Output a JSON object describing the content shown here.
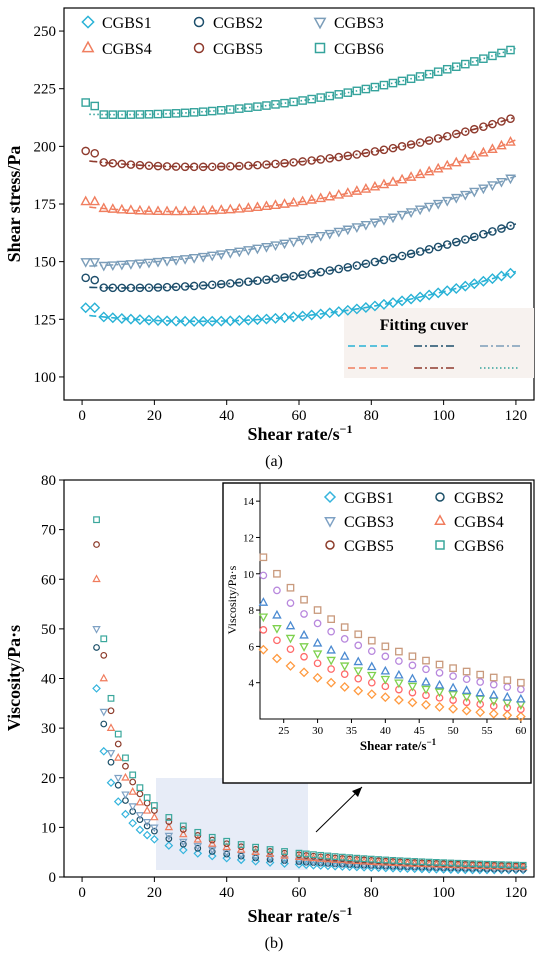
{
  "chart_data": [
    {
      "type": "scatter",
      "panel_label": "(a)",
      "xlabel": "Shear rate/s",
      "xlabel_sup": "−1",
      "ylabel": "Shear stress/Pa",
      "xlim": [
        -5,
        125
      ],
      "ylim": [
        90,
        260
      ],
      "xticks": [
        "0",
        "20",
        "40",
        "60",
        "80",
        "100",
        "120"
      ],
      "yticks": [
        "100",
        "125",
        "150",
        "175",
        "200",
        "225",
        "250"
      ],
      "legend_placement": "top",
      "fit_legend_title": "Fitting cuver",
      "series": [
        {
          "name": "CGBS1",
          "marker": "diamond",
          "color": "#29b2d6",
          "fit": "dash",
          "params": [
            127,
            -0.18,
            0.0028
          ]
        },
        {
          "name": "CGBS2",
          "marker": "circle",
          "color": "#1d4e6b",
          "fit": "dashdot",
          "params": [
            139,
            -0.06,
            0.0024
          ]
        },
        {
          "name": "CGBS3",
          "marker": "tri-down",
          "color": "#7b9db9",
          "fit": "dashdot",
          "params": [
            148,
            0.05,
            0.0023
          ]
        },
        {
          "name": "CGBS4",
          "marker": "tri-up",
          "color": "#f07e5f",
          "fit": "dash",
          "params": [
            174,
            -0.18,
            0.0035
          ]
        },
        {
          "name": "CGBS5",
          "marker": "circle",
          "color": "#8f3b2e",
          "fit": "dashdot",
          "params": [
            194,
            -0.18,
            0.0028
          ]
        },
        {
          "name": "CGBS6",
          "marker": "square",
          "color": "#35a39c",
          "fit": "dot",
          "params": [
            214,
            -0.05,
            0.0024
          ]
        }
      ],
      "start_points": [
        [
          130,
          128
        ],
        [
          143,
          139
        ],
        [
          150,
          148
        ],
        [
          176,
          174
        ],
        [
          198,
          194
        ],
        [
          219,
          214
        ]
      ]
    },
    {
      "type": "scatter",
      "panel_label": "(b)",
      "xlabel": "Shear rate/s",
      "xlabel_sup": "−1",
      "ylabel": "Viscosity/Pa·s",
      "xlim": [
        -5,
        125
      ],
      "ylim": [
        0,
        80
      ],
      "xticks": [
        "0",
        "20",
        "40",
        "60",
        "80",
        "100",
        "120"
      ],
      "yticks": [
        "0",
        "10",
        "20",
        "30",
        "40",
        "50",
        "60",
        "70",
        "80"
      ],
      "legend_placement": "inset",
      "series": [
        {
          "name": "CGBS1",
          "marker": "diamond",
          "color": "#35b4dd",
          "a": 152
        },
        {
          "name": "CGBS2",
          "marker": "circle",
          "color": "#1b4f68",
          "a": 185
        },
        {
          "name": "CGBS3",
          "marker": "tri-down",
          "color": "#7ea1c4",
          "a": 200
        },
        {
          "name": "CGBS4",
          "marker": "tri-up",
          "color": "#f07b5c",
          "a": 240
        },
        {
          "name": "CGBS5",
          "marker": "circle",
          "color": "#8c3b2a",
          "a": 268
        },
        {
          "name": "CGBS6",
          "marker": "square",
          "color": "#3aa79c",
          "a": 288
        }
      ],
      "inset": {
        "xlabel": "Shear rate/s",
        "xlabel_sup": "−1",
        "ylabel": "Viscosity/Pa·s",
        "xlim": [
          21.5,
          61.5
        ],
        "ylim": [
          2,
          15
        ],
        "xticks": [
          "25",
          "30",
          "35",
          "40",
          "45",
          "50",
          "55",
          "60"
        ],
        "yticks": [
          "4",
          "6",
          "8",
          "10",
          "12",
          "14"
        ],
        "series": [
          {
            "color": "#ff9a40",
            "marker": "diamond",
            "a": 128
          },
          {
            "color": "#ff6a6a",
            "marker": "circle",
            "a": 152
          },
          {
            "color": "#7ed14e",
            "marker": "tri-down",
            "a": 168
          },
          {
            "color": "#4b8ad1",
            "marker": "tri-up",
            "a": 185
          },
          {
            "color": "#b888dd",
            "marker": "circle",
            "a": 218
          },
          {
            "color": "#c99a7d",
            "marker": "square",
            "a": 240
          }
        ]
      }
    }
  ]
}
